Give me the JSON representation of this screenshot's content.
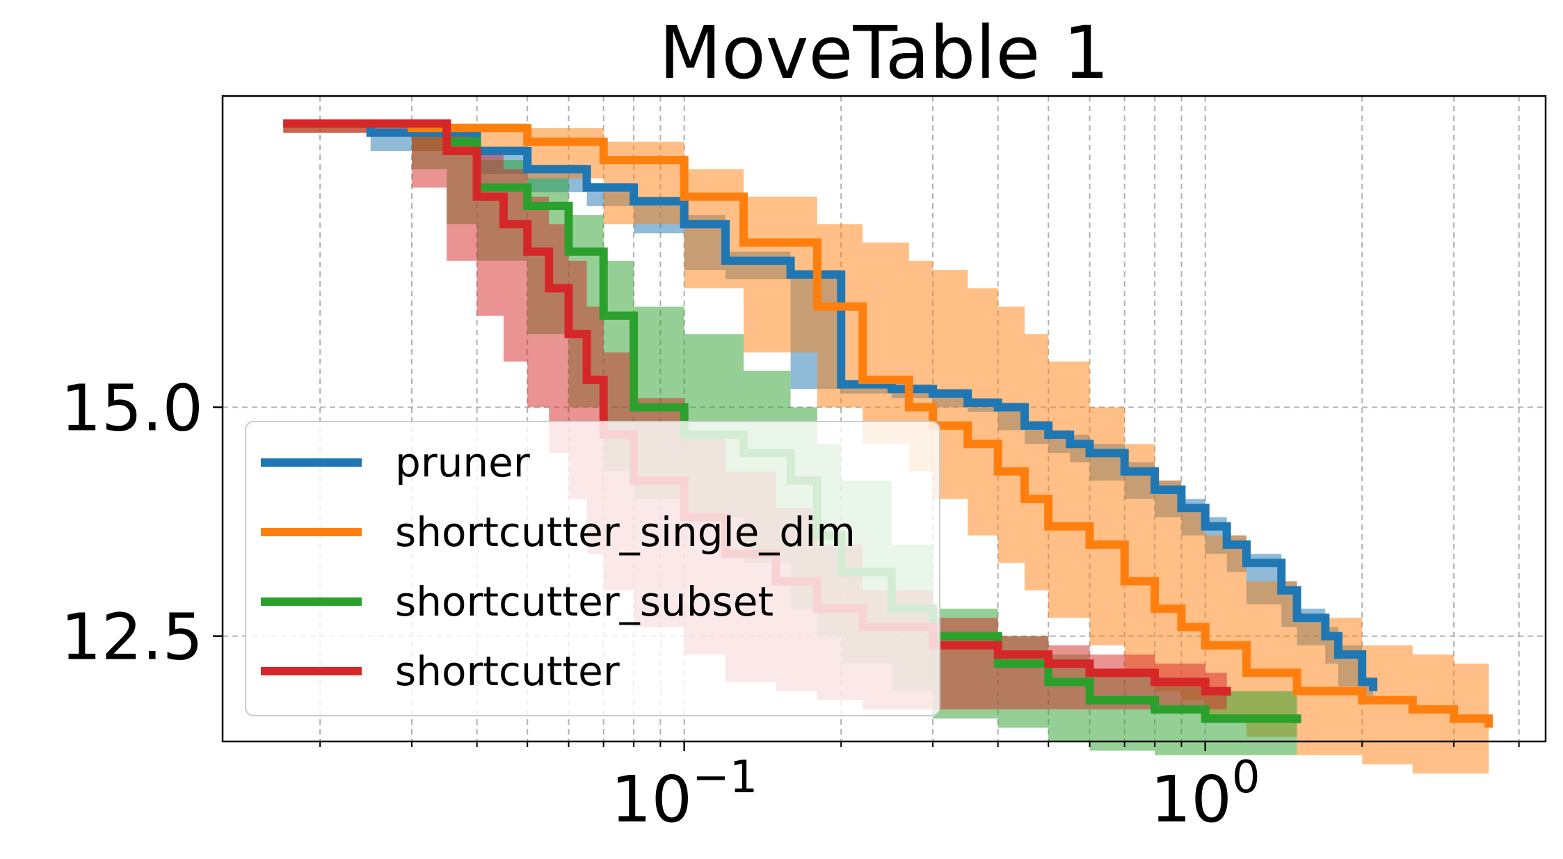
{
  "chart_data": {
    "type": "line",
    "title": "MoveTable 1",
    "xlabel": "",
    "ylabel": "",
    "xscale": "log",
    "xlim": [
      0.013,
      4.5
    ],
    "ylim": [
      11.35,
      18.4
    ],
    "x_ticks": [
      {
        "base": "10",
        "exp": "−1",
        "value": 0.1
      },
      {
        "base": "10",
        "exp": "0",
        "value": 1
      }
    ],
    "y_ticks": [
      {
        "label": "15.0",
        "value": 15.0
      },
      {
        "label": "12.5",
        "value": 12.5
      }
    ],
    "grid": true,
    "legend_position": "lower-left",
    "series": [
      {
        "name": "pruner",
        "color": "#1f77b4",
        "x": [
          0.017,
          0.025,
          0.04,
          0.05,
          0.065,
          0.08,
          0.1,
          0.12,
          0.16,
          0.2,
          0.25,
          0.3,
          0.35,
          0.4,
          0.45,
          0.5,
          0.55,
          0.6,
          0.7,
          0.8,
          0.9,
          1.0,
          1.1,
          1.2,
          1.4,
          1.5,
          1.7,
          1.8,
          2.0,
          2.1
        ],
        "y": [
          18.1,
          18.0,
          17.8,
          17.6,
          17.4,
          17.25,
          17.0,
          16.6,
          16.45,
          15.25,
          15.2,
          15.15,
          15.05,
          15.0,
          14.8,
          14.7,
          14.6,
          14.5,
          14.3,
          14.1,
          13.9,
          13.7,
          13.5,
          13.3,
          13.0,
          12.7,
          12.5,
          12.3,
          12.0,
          11.9
        ],
        "lower": [
          18.1,
          18.0,
          17.8,
          17.55,
          17.35,
          17.2,
          16.9,
          16.5,
          16.4,
          15.2,
          15.15,
          15.1,
          15.0,
          14.95,
          14.75,
          14.6,
          14.5,
          14.4,
          14.2,
          14.0,
          13.8,
          13.6,
          13.4,
          13.2,
          12.85,
          12.6,
          12.4,
          12.2,
          11.95,
          11.85
        ],
        "upper": [
          18.1,
          18.0,
          17.85,
          17.65,
          17.45,
          17.3,
          17.1,
          16.7,
          16.5,
          15.3,
          15.25,
          15.2,
          15.1,
          15.05,
          14.85,
          14.75,
          14.7,
          14.6,
          14.4,
          14.2,
          14.0,
          13.8,
          13.6,
          13.4,
          13.1,
          12.8,
          12.6,
          12.4,
          12.05,
          11.95
        ]
      },
      {
        "name": "shortcutter_single_dim",
        "color": "#ff7f0e",
        "x": [
          0.017,
          0.03,
          0.05,
          0.07,
          0.1,
          0.13,
          0.18,
          0.22,
          0.27,
          0.3,
          0.35,
          0.4,
          0.45,
          0.5,
          0.6,
          0.7,
          0.8,
          0.9,
          1.0,
          1.2,
          1.5,
          2.0,
          2.5,
          3.0,
          3.5
        ],
        "y": [
          18.1,
          18.05,
          17.9,
          17.7,
          17.3,
          16.8,
          16.1,
          15.3,
          15.0,
          14.8,
          14.6,
          14.3,
          14.0,
          13.7,
          13.5,
          13.1,
          12.8,
          12.6,
          12.4,
          12.1,
          11.9,
          11.8,
          11.7,
          11.6,
          11.5
        ],
        "lower": [
          18.1,
          18.0,
          17.8,
          17.5,
          17.0,
          16.3,
          15.6,
          15.0,
          14.6,
          14.3,
          14.0,
          13.6,
          13.3,
          13.0,
          12.7,
          12.4,
          12.1,
          11.9,
          11.8,
          11.6,
          11.4,
          11.2,
          11.1,
          11.0,
          11.0
        ],
        "upper": [
          18.1,
          18.1,
          18.05,
          17.9,
          17.6,
          17.3,
          17.0,
          16.8,
          16.6,
          16.5,
          16.3,
          16.1,
          15.8,
          15.5,
          15.0,
          14.6,
          14.2,
          13.9,
          13.6,
          13.1,
          12.7,
          12.4,
          12.3,
          12.2,
          12.1
        ]
      },
      {
        "name": "shortcutter_subset",
        "color": "#2ca02c",
        "x": [
          0.017,
          0.03,
          0.035,
          0.04,
          0.05,
          0.06,
          0.07,
          0.08,
          0.1,
          0.13,
          0.16,
          0.18,
          0.2,
          0.25,
          0.3,
          0.4,
          0.5,
          0.6,
          0.8,
          1.0,
          1.5
        ],
        "y": [
          18.1,
          18.1,
          17.9,
          17.4,
          17.2,
          16.7,
          16.0,
          15.0,
          14.7,
          14.5,
          14.2,
          13.6,
          13.2,
          12.8,
          12.5,
          12.2,
          12.0,
          11.8,
          11.7,
          11.6,
          11.55
        ],
        "lower": [
          18.1,
          18.05,
          17.6,
          17.0,
          16.6,
          15.8,
          15.0,
          14.3,
          14.0,
          13.8,
          13.3,
          12.8,
          12.5,
          12.2,
          11.9,
          11.6,
          11.5,
          11.35,
          11.25,
          11.2,
          11.2
        ],
        "upper": [
          18.1,
          18.1,
          18.0,
          17.7,
          17.5,
          17.1,
          16.6,
          16.1,
          15.8,
          15.4,
          15.0,
          14.6,
          14.2,
          13.5,
          12.8,
          12.5,
          12.3,
          12.1,
          12.0,
          11.9,
          11.85
        ]
      },
      {
        "name": "shortcutter",
        "color": "#d62728",
        "x": [
          0.017,
          0.03,
          0.035,
          0.04,
          0.045,
          0.05,
          0.055,
          0.06,
          0.065,
          0.07,
          0.08,
          0.1,
          0.12,
          0.15,
          0.18,
          0.22,
          0.3,
          0.4,
          0.5,
          0.6,
          0.8,
          1.0,
          1.1
        ],
        "y": [
          18.1,
          18.1,
          17.8,
          17.3,
          17.0,
          16.7,
          16.3,
          15.8,
          15.3,
          14.7,
          14.2,
          13.8,
          13.4,
          13.1,
          12.8,
          12.6,
          12.4,
          12.3,
          12.2,
          12.1,
          12.0,
          11.9,
          11.85
        ],
        "lower": [
          18.1,
          18.0,
          17.4,
          16.6,
          16.0,
          15.5,
          15.0,
          14.5,
          14.0,
          13.4,
          13.0,
          12.6,
          12.3,
          12.0,
          11.9,
          11.8,
          11.7,
          11.7,
          11.7,
          11.7,
          11.7,
          11.7,
          11.7
        ],
        "upper": [
          18.1,
          18.1,
          18.0,
          17.8,
          17.6,
          17.3,
          17.0,
          16.6,
          16.1,
          15.6,
          15.1,
          14.7,
          14.3,
          13.9,
          13.5,
          13.0,
          12.7,
          12.5,
          12.4,
          12.3,
          12.2,
          12.1,
          12.05
        ]
      }
    ]
  }
}
